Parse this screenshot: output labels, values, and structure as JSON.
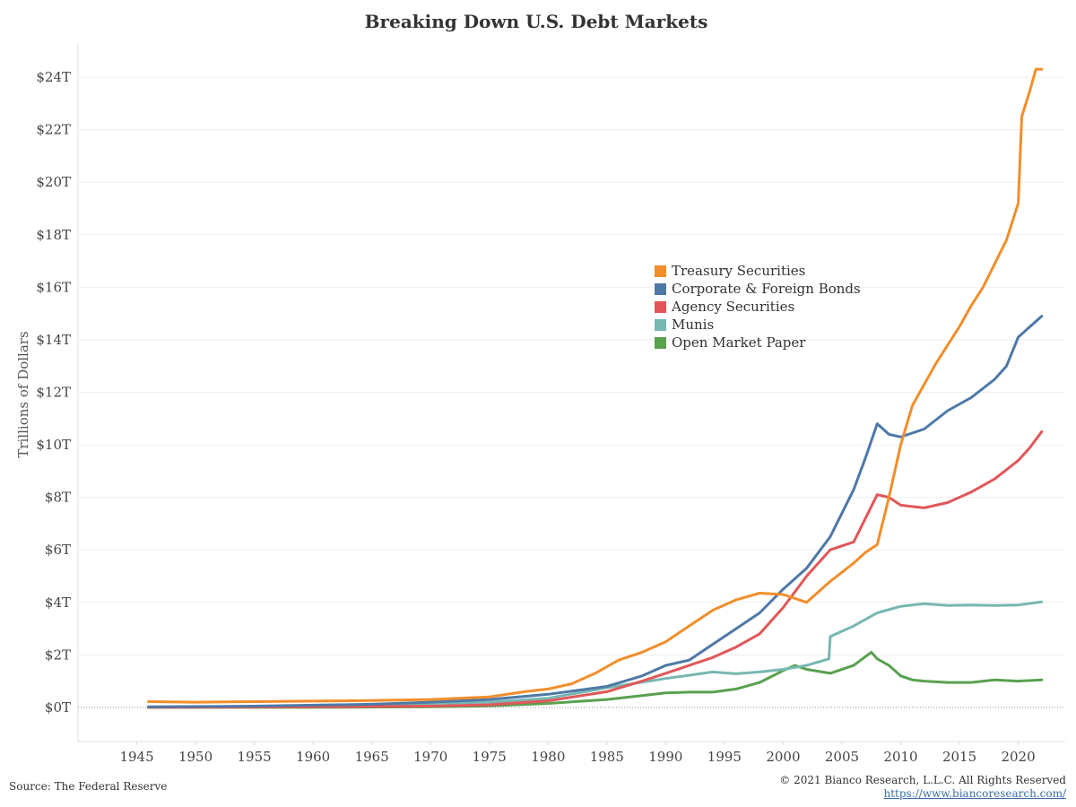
{
  "chart_data": {
    "type": "line",
    "title": "Breaking Down U.S. Debt Markets",
    "xlabel": "",
    "ylabel": "Trillions of Dollars",
    "xlim": [
      1940,
      2024
    ],
    "ylim": [
      -1.3,
      25.3
    ],
    "x_ticks": [
      1945,
      1950,
      1955,
      1960,
      1965,
      1970,
      1975,
      1980,
      1985,
      1990,
      1995,
      2000,
      2005,
      2010,
      2015,
      2020
    ],
    "y_ticks": [
      0,
      2,
      4,
      6,
      8,
      10,
      12,
      14,
      16,
      18,
      20,
      22,
      24
    ],
    "y_tick_labels": [
      "$0T",
      "$2T",
      "$4T",
      "$6T",
      "$8T",
      "$10T",
      "$12T",
      "$14T",
      "$16T",
      "$18T",
      "$20T",
      "$22T",
      "$24T"
    ],
    "grid": "horizontal",
    "legend_position": "center-right",
    "series": [
      {
        "name": "Treasury Securities",
        "color": "#f28e2b",
        "x": [
          1946,
          1950,
          1955,
          1960,
          1965,
          1970,
          1975,
          1978,
          1980,
          1982,
          1984,
          1986,
          1988,
          1990,
          1992,
          1994,
          1996,
          1998,
          2000,
          2002,
          2004,
          2006,
          2007,
          2008,
          2009,
          2010,
          2011,
          2012,
          2013,
          2014,
          2015,
          2016,
          2017,
          2018,
          2019,
          2020,
          2020.3,
          2021,
          2021.5,
          2022
        ],
        "y": [
          0.22,
          0.2,
          0.22,
          0.24,
          0.26,
          0.3,
          0.4,
          0.6,
          0.7,
          0.9,
          1.3,
          1.8,
          2.1,
          2.5,
          3.1,
          3.7,
          4.1,
          4.35,
          4.3,
          4.0,
          4.8,
          5.5,
          5.9,
          6.2,
          8.0,
          10.0,
          11.5,
          12.3,
          13.1,
          13.8,
          14.5,
          15.3,
          16.0,
          16.9,
          17.8,
          19.2,
          22.5,
          23.5,
          24.3,
          24.3
        ]
      },
      {
        "name": "Corporate & Foreign Bonds",
        "color": "#4e79a7",
        "x": [
          1946,
          1955,
          1965,
          1970,
          1975,
          1980,
          1985,
          1988,
          1990,
          1992,
          1994,
          1996,
          1998,
          2000,
          2002,
          2004,
          2006,
          2007,
          2008,
          2009,
          2010,
          2012,
          2014,
          2016,
          2018,
          2019,
          2020,
          2021,
          2022
        ],
        "y": [
          0.02,
          0.05,
          0.12,
          0.2,
          0.3,
          0.5,
          0.8,
          1.2,
          1.6,
          1.8,
          2.4,
          3.0,
          3.6,
          4.5,
          5.3,
          6.5,
          8.3,
          9.5,
          10.8,
          10.4,
          10.3,
          10.6,
          11.3,
          11.8,
          12.5,
          13.0,
          14.1,
          14.5,
          14.9
        ]
      },
      {
        "name": "Agency Securities",
        "color": "#e15759",
        "x": [
          1946,
          1960,
          1970,
          1975,
          1980,
          1985,
          1988,
          1990,
          1992,
          1994,
          1996,
          1998,
          2000,
          2002,
          2004,
          2006,
          2007,
          2008,
          2009,
          2010,
          2012,
          2014,
          2016,
          2018,
          2020,
          2021,
          2022
        ],
        "y": [
          0.0,
          0.02,
          0.05,
          0.1,
          0.25,
          0.6,
          1.0,
          1.3,
          1.6,
          1.9,
          2.3,
          2.8,
          3.8,
          5.0,
          6.0,
          6.3,
          7.2,
          8.1,
          8.0,
          7.7,
          7.6,
          7.8,
          8.2,
          8.7,
          9.4,
          9.9,
          10.5
        ]
      },
      {
        "name": "Munis",
        "color": "#76b7b2",
        "x": [
          1946,
          1955,
          1965,
          1970,
          1975,
          1980,
          1985,
          1990,
          1994,
          1996,
          1998,
          2000,
          2002,
          2003.9,
          2004,
          2006,
          2008,
          2010,
          2012,
          2014,
          2016,
          2018,
          2020,
          2022
        ],
        "y": [
          0.01,
          0.04,
          0.1,
          0.15,
          0.2,
          0.35,
          0.75,
          1.1,
          1.35,
          1.28,
          1.35,
          1.45,
          1.6,
          1.85,
          2.7,
          3.1,
          3.6,
          3.85,
          3.95,
          3.88,
          3.9,
          3.88,
          3.9,
          4.02
        ]
      },
      {
        "name": "Open Market Paper",
        "color": "#59a14f",
        "x": [
          1946,
          1960,
          1970,
          1975,
          1980,
          1985,
          1988,
          1990,
          1992,
          1994,
          1996,
          1998,
          2000,
          2001,
          2002,
          2004,
          2006,
          2007.5,
          2008,
          2009,
          2010,
          2011,
          2012,
          2014,
          2016,
          2018,
          2020,
          2022
        ],
        "y": [
          0.0,
          0.0,
          0.02,
          0.06,
          0.15,
          0.3,
          0.45,
          0.55,
          0.58,
          0.58,
          0.7,
          0.95,
          1.4,
          1.6,
          1.45,
          1.3,
          1.6,
          2.1,
          1.85,
          1.6,
          1.2,
          1.05,
          1.0,
          0.95,
          0.95,
          1.05,
          1.0,
          1.05
        ]
      }
    ]
  },
  "footer": {
    "source": "Source: The Federal Reserve",
    "copyright": "© 2021 Bianco Research, L.L.C. All Rights Reserved",
    "url": "https://www.biancoresearch.com/"
  }
}
